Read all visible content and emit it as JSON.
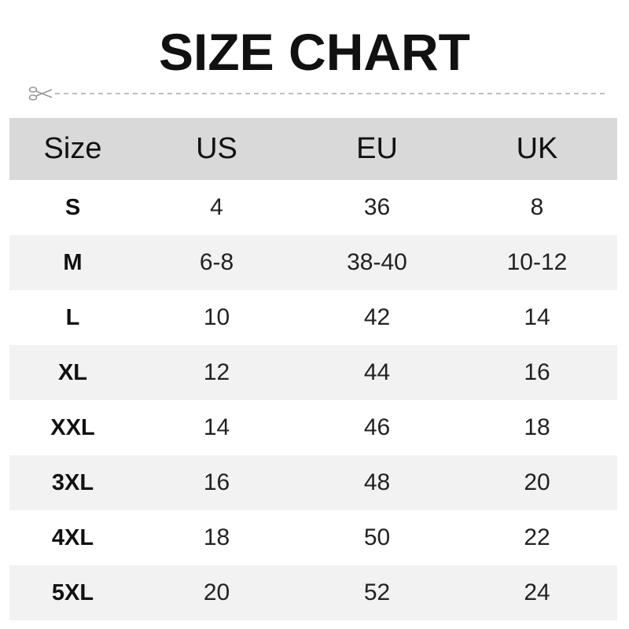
{
  "title": "SIZE CHART",
  "icons": {
    "cut": "scissors-icon"
  },
  "colors": {
    "header_bg": "#d9d9d9",
    "alt_row_bg": "#f2f2f2",
    "text": "#111111"
  },
  "table": {
    "headers": [
      "Size",
      "US",
      "EU",
      "UK"
    ],
    "rows": [
      [
        "S",
        "4",
        "36",
        "8"
      ],
      [
        "M",
        "6-8",
        "38-40",
        "10-12"
      ],
      [
        "L",
        "10",
        "42",
        "14"
      ],
      [
        "XL",
        "12",
        "44",
        "16"
      ],
      [
        "XXL",
        "14",
        "46",
        "18"
      ],
      [
        "3XL",
        "16",
        "48",
        "20"
      ],
      [
        "4XL",
        "18",
        "50",
        "22"
      ],
      [
        "5XL",
        "20",
        "52",
        "24"
      ]
    ]
  }
}
